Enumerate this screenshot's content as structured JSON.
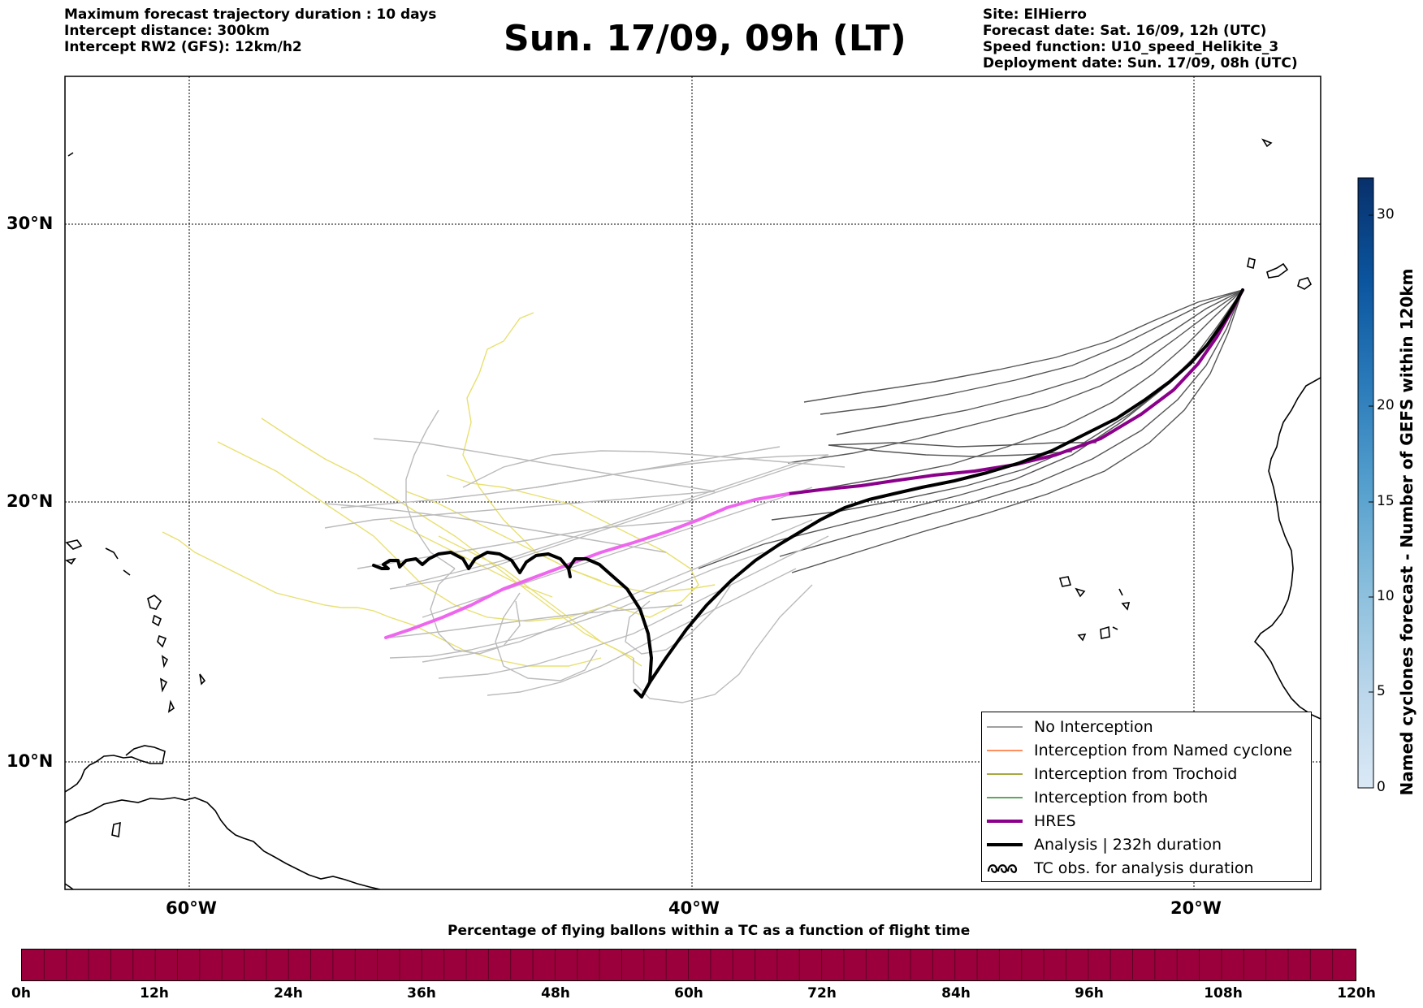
{
  "header": {
    "left_lines": [
      "Maximum forecast trajectory duration : 10 days",
      "Intercept distance: 300km",
      "Intercept RW2 (GFS):  12km/h2"
    ],
    "title": "Sun. 17/09, 09h (LT)",
    "right_lines": [
      "Site: ElHierro",
      "Forecast date: Sat. 16/09, 12h (UTC)",
      "Speed function: U10_speed_Helikite_3",
      "Deployment date: Sun. 17/09, 08h (UTC)"
    ]
  },
  "map": {
    "lon_ticks": [
      "60°W",
      "40°W",
      "20°W"
    ],
    "lat_ticks": [
      "30°N",
      "20°N",
      "10°N"
    ],
    "colors": {
      "no_interception": "#808080",
      "named_cyclone": "#ff6a2a",
      "trochoid": "#8b8b00",
      "both": "#2a8a2a",
      "hres": "#8b008b",
      "hres_pink": "#ee66ee",
      "analysis": "#000000",
      "trochoid_tracks": "#e8e070"
    }
  },
  "legend": {
    "items": [
      {
        "label": "No Interception",
        "type": "line",
        "color": "#808080",
        "width": 1.5
      },
      {
        "label": "Interception from Named cyclone",
        "type": "line",
        "color": "#ff6a2a",
        "width": 1.5
      },
      {
        "label": "Interception from Trochoid",
        "type": "line",
        "color": "#8b8b00",
        "width": 1.5
      },
      {
        "label": "Interception from both",
        "type": "line",
        "color": "#2a8a2a",
        "width": 1.5
      },
      {
        "label": "HRES",
        "type": "line",
        "color": "#8b008b",
        "width": 4
      },
      {
        "label": "Analysis | 232h duration",
        "type": "line",
        "color": "#000000",
        "width": 4
      },
      {
        "label": "TC obs. for analysis duration",
        "type": "loops",
        "color": "#000000",
        "width": 2.5
      }
    ]
  },
  "colorbar": {
    "label": "Named cyclones forecast - Number of GEFS within 120km",
    "ticks": [
      "0",
      "5",
      "10",
      "15",
      "20",
      "30"
    ],
    "colors": [
      "#dbe9f6",
      "#bad6eb",
      "#89bedc",
      "#539ecd",
      "#2b7bba",
      "#0b559f",
      "#08306b"
    ]
  },
  "percentage_bar": {
    "title": "Percentage of flying ballons within a TC as a function of flight time",
    "color": "#9c003c",
    "ticks": [
      "0h",
      "12h",
      "24h",
      "36h",
      "48h",
      "60h",
      "72h",
      "84h",
      "96h",
      "108h",
      "120h"
    ]
  }
}
